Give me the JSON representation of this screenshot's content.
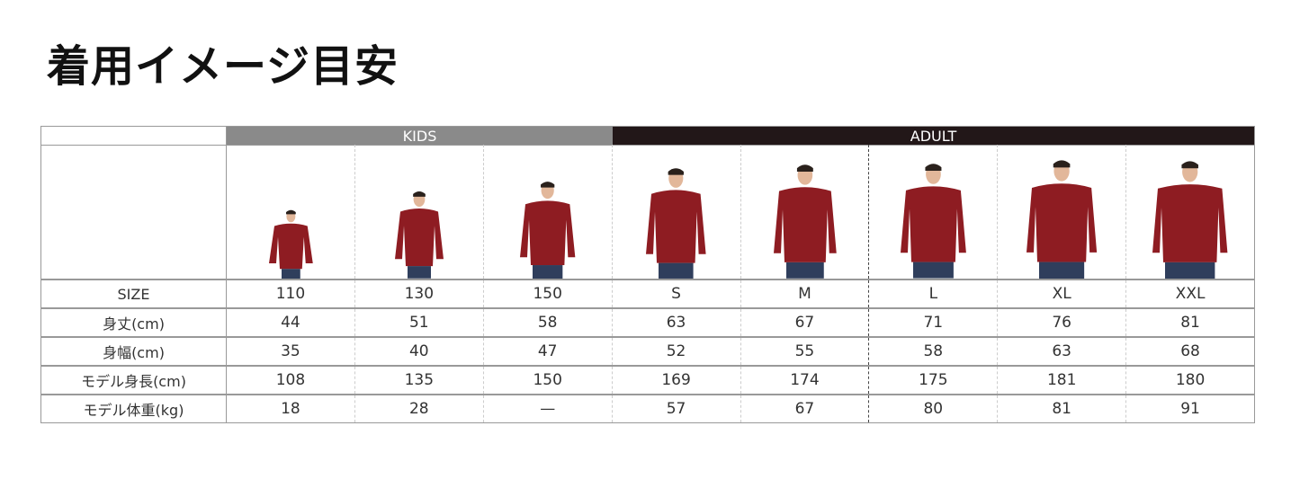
{
  "title": "着用イメージ目安",
  "groups": {
    "kids": "KIDS",
    "adult": "ADULT"
  },
  "colors": {
    "kids_header": "#8a8a8a",
    "adult_header": "#221718",
    "sweater": "#8e1c22",
    "jeans": "#2f3e5c"
  },
  "sizes": [
    "110",
    "130",
    "150",
    "S",
    "M",
    "L",
    "XL",
    "XXL"
  ],
  "rows": [
    {
      "label": "SIZE",
      "values": [
        "110",
        "130",
        "150",
        "S",
        "M",
        "L",
        "XL",
        "XXL"
      ]
    },
    {
      "label": "身丈(cm)",
      "values": [
        "44",
        "51",
        "58",
        "63",
        "67",
        "71",
        "76",
        "81"
      ]
    },
    {
      "label": "身幅(cm)",
      "values": [
        "35",
        "40",
        "47",
        "52",
        "55",
        "58",
        "63",
        "68"
      ]
    },
    {
      "label": "モデル身長(cm)",
      "values": [
        "108",
        "135",
        "150",
        "169",
        "174",
        "175",
        "181",
        "180"
      ]
    },
    {
      "label": "モデル体重(kg)",
      "values": [
        "18",
        "28",
        "—",
        "57",
        "67",
        "80",
        "81",
        "91"
      ]
    }
  ]
}
